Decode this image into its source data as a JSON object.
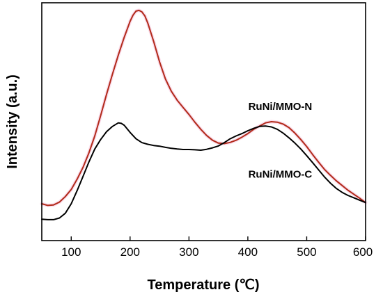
{
  "chart_data": {
    "type": "line",
    "xlabel": "Temperature (℃)",
    "ylabel": "Intensity (a.u.)",
    "xlim": [
      50,
      600
    ],
    "ylim": [
      0,
      1
    ],
    "xticks": [
      100,
      200,
      300,
      400,
      500,
      600
    ],
    "yticks_shown": false,
    "grid": false,
    "series": [
      {
        "name": "RuNi/MMO-N",
        "color": "#b22a1a",
        "glow_color": "#f2a0c8",
        "x": [
          50,
          60,
          70,
          80,
          90,
          100,
          110,
          120,
          130,
          140,
          150,
          160,
          170,
          180,
          190,
          200,
          205,
          210,
          215,
          220,
          225,
          230,
          240,
          250,
          260,
          270,
          280,
          290,
          300,
          310,
          320,
          330,
          340,
          350,
          360,
          370,
          380,
          390,
          400,
          410,
          420,
          430,
          440,
          450,
          460,
          470,
          480,
          490,
          500,
          510,
          520,
          530,
          540,
          550,
          560,
          570,
          580,
          590,
          600
        ],
        "y": [
          0.155,
          0.148,
          0.15,
          0.162,
          0.185,
          0.215,
          0.258,
          0.308,
          0.368,
          0.44,
          0.525,
          0.615,
          0.7,
          0.78,
          0.855,
          0.922,
          0.948,
          0.965,
          0.968,
          0.962,
          0.945,
          0.915,
          0.838,
          0.752,
          0.68,
          0.628,
          0.59,
          0.56,
          0.53,
          0.498,
          0.468,
          0.442,
          0.422,
          0.41,
          0.408,
          0.413,
          0.422,
          0.435,
          0.45,
          0.468,
          0.482,
          0.495,
          0.5,
          0.498,
          0.49,
          0.475,
          0.452,
          0.425,
          0.395,
          0.362,
          0.33,
          0.3,
          0.275,
          0.252,
          0.232,
          0.212,
          0.195,
          0.178,
          0.16
        ]
      },
      {
        "name": "RuNi/MMO-C",
        "color": "#000000",
        "x": [
          50,
          60,
          70,
          80,
          90,
          100,
          110,
          120,
          130,
          140,
          150,
          160,
          170,
          180,
          185,
          190,
          200,
          210,
          220,
          230,
          240,
          250,
          260,
          270,
          280,
          290,
          300,
          310,
          320,
          330,
          340,
          350,
          360,
          370,
          380,
          390,
          400,
          410,
          420,
          430,
          440,
          450,
          460,
          470,
          480,
          490,
          500,
          510,
          520,
          530,
          540,
          550,
          560,
          570,
          580,
          590,
          600
        ],
        "y": [
          0.09,
          0.088,
          0.088,
          0.095,
          0.115,
          0.155,
          0.21,
          0.27,
          0.33,
          0.385,
          0.425,
          0.458,
          0.48,
          0.495,
          0.493,
          0.485,
          0.455,
          0.428,
          0.412,
          0.405,
          0.4,
          0.397,
          0.392,
          0.388,
          0.385,
          0.383,
          0.383,
          0.382,
          0.38,
          0.384,
          0.39,
          0.398,
          0.412,
          0.428,
          0.44,
          0.45,
          0.462,
          0.472,
          0.48,
          0.482,
          0.478,
          0.468,
          0.452,
          0.432,
          0.41,
          0.385,
          0.357,
          0.328,
          0.298,
          0.268,
          0.242,
          0.22,
          0.203,
          0.19,
          0.18,
          0.17,
          0.16
        ]
      }
    ],
    "annotations": [
      {
        "text": "RuNi/MMO-N",
        "x": 455,
        "y": 0.55
      },
      {
        "text": "RuNi/MMO-C",
        "x": 455,
        "y": 0.265
      }
    ]
  }
}
